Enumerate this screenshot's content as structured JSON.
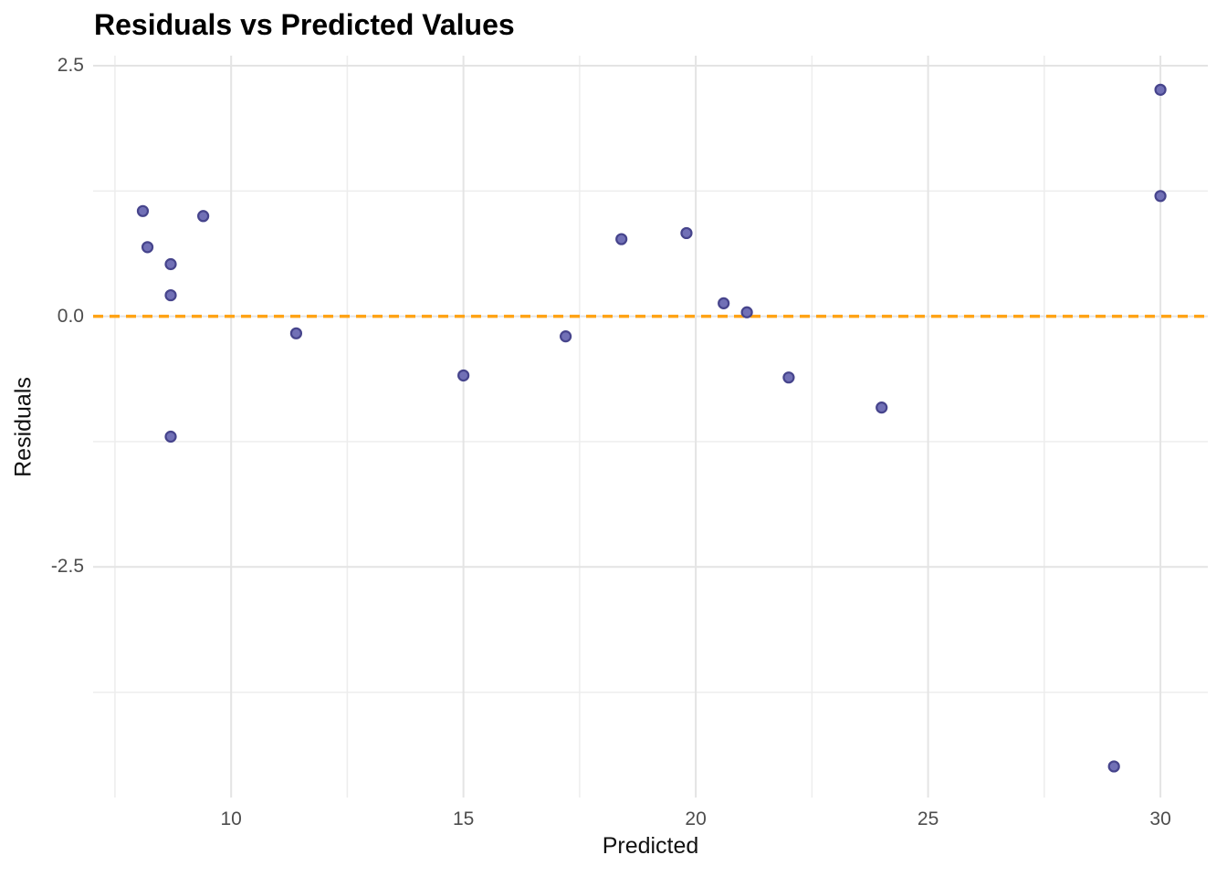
{
  "chart_data": {
    "type": "scatter",
    "title": "Residuals vs Predicted Values",
    "xlabel": "Predicted",
    "ylabel": "Residuals",
    "x_range": [
      7.03,
      31.02
    ],
    "y_range": [
      -4.8,
      2.6
    ],
    "x_major_ticks": [
      10,
      15,
      20,
      25,
      30
    ],
    "x_tick_labels": [
      "10",
      "15",
      "20",
      "25",
      "30"
    ],
    "x_minor_gridlines": [
      7.5,
      12.5,
      17.5,
      22.5,
      27.5
    ],
    "y_major_ticks": [
      2.5,
      0.0,
      -2.5
    ],
    "y_tick_labels": [
      "2.5",
      "0.0",
      "-2.5"
    ],
    "y_minor_gridlines": [
      1.25,
      -1.25,
      -3.75
    ],
    "grid": true,
    "legend": false,
    "reference_line": {
      "y": 0.0,
      "style": "dashed",
      "color": "#FFA315"
    },
    "points": [
      {
        "x": 8.1,
        "y": 1.05
      },
      {
        "x": 9.4,
        "y": 1.0
      },
      {
        "x": 8.2,
        "y": 0.69
      },
      {
        "x": 8.7,
        "y": 0.52
      },
      {
        "x": 8.7,
        "y": 0.21
      },
      {
        "x": 11.4,
        "y": -0.17
      },
      {
        "x": 8.7,
        "y": -1.2
      },
      {
        "x": 15.0,
        "y": -0.59
      },
      {
        "x": 17.2,
        "y": -0.2
      },
      {
        "x": 18.4,
        "y": 0.77
      },
      {
        "x": 19.8,
        "y": 0.83
      },
      {
        "x": 20.6,
        "y": 0.13
      },
      {
        "x": 21.1,
        "y": 0.04
      },
      {
        "x": 22.0,
        "y": -0.61
      },
      {
        "x": 24.0,
        "y": -0.91
      },
      {
        "x": 30.0,
        "y": 2.26
      },
      {
        "x": 30.0,
        "y": 1.2
      },
      {
        "x": 29.0,
        "y": -4.49
      }
    ],
    "style": {
      "point_fill": "#7170B6",
      "point_stroke": "#46448C",
      "grid_major_color": "#E4E4E4",
      "grid_minor_color": "#EDEDED",
      "background": "#FFFFFF"
    }
  }
}
